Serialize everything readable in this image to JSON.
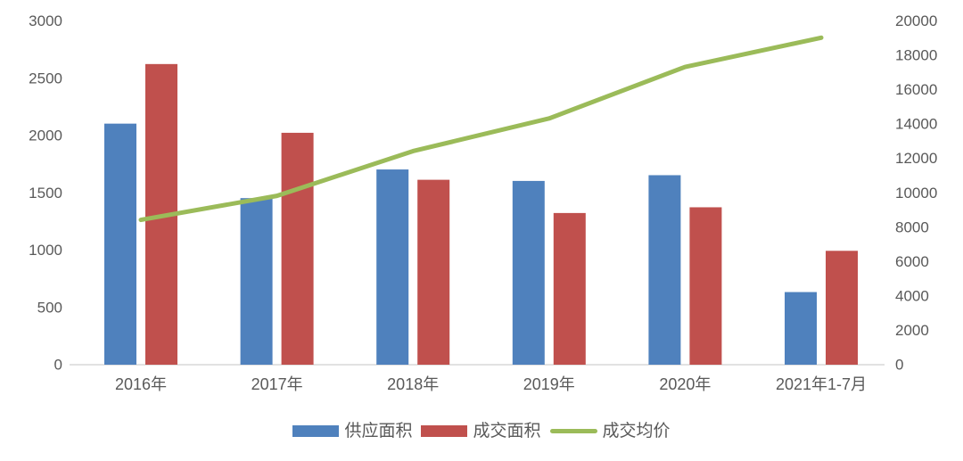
{
  "chart_data": {
    "type": "combo",
    "title": "",
    "categories": [
      "2016年",
      "2017年",
      "2018年",
      "2019年",
      "2020年",
      "2021年1-7月"
    ],
    "series": [
      {
        "name": "供应面积",
        "type": "bar",
        "axis": "left",
        "color": "#4F81BD",
        "values": [
          2100,
          1450,
          1700,
          1600,
          1650,
          630
        ]
      },
      {
        "name": "成交面积",
        "type": "bar",
        "axis": "left",
        "color": "#C0504D",
        "values": [
          2620,
          2020,
          1610,
          1320,
          1370,
          990
        ]
      },
      {
        "name": "成交均价",
        "type": "line",
        "axis": "right",
        "color": "#9BBB59",
        "values": [
          8400,
          9800,
          12400,
          14300,
          17300,
          19000
        ]
      }
    ],
    "left_axis": {
      "min": 0,
      "max": 3000,
      "step": 500,
      "ticks": [
        "0",
        "500",
        "1000",
        "1500",
        "2000",
        "2500",
        "3000"
      ]
    },
    "right_axis": {
      "min": 0,
      "max": 20000,
      "step": 2000,
      "ticks": [
        "0",
        "2000",
        "4000",
        "6000",
        "8000",
        "10000",
        "12000",
        "14000",
        "16000",
        "18000",
        "20000"
      ]
    },
    "grid": false,
    "legend_position": "bottom",
    "colors": {
      "axis_text": "#595959",
      "axis_line": "#D9D9D9",
      "background": "#FFFFFF"
    }
  }
}
